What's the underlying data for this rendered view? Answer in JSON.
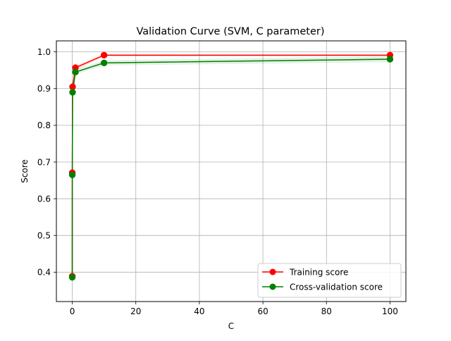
{
  "chart_data": {
    "type": "line",
    "title": "Validation Curve (SVM, C parameter)",
    "xlabel": "C",
    "ylabel": "Score",
    "xlim": [
      -5,
      105
    ],
    "ylim": [
      0.32,
      1.03
    ],
    "grid": true,
    "legend_position": "lower-right",
    "xticks": [
      0,
      20,
      40,
      60,
      80,
      100
    ],
    "xtick_labels": [
      "0",
      "20",
      "40",
      "60",
      "80",
      "100"
    ],
    "yticks": [
      0.4,
      0.5,
      0.6,
      0.7,
      0.8,
      0.9,
      1.0
    ],
    "ytick_labels": [
      "0.4",
      "0.5",
      "0.6",
      "0.7",
      "0.8",
      "0.9",
      "1.0"
    ],
    "x": [
      0.001,
      0.01,
      0.1,
      1,
      10,
      100
    ],
    "series": [
      {
        "name": "Training score",
        "color": "#ff0000",
        "marker": "circle",
        "values": [
          0.389,
          0.671,
          0.905,
          0.957,
          0.991,
          0.991
        ],
        "band_upper": [
          0.391,
          0.675,
          0.91,
          0.963,
          0.994,
          0.994
        ],
        "band_lower": [
          0.387,
          0.667,
          0.9,
          0.949,
          0.988,
          0.988
        ]
      },
      {
        "name": "Cross-validation score",
        "color": "#008000",
        "marker": "circle",
        "values": [
          0.386,
          0.665,
          0.89,
          0.945,
          0.97,
          0.98
        ],
        "band_upper": [
          0.388,
          0.67,
          0.897,
          0.952,
          0.977,
          0.988
        ],
        "band_lower": [
          0.384,
          0.66,
          0.883,
          0.938,
          0.963,
          0.972
        ]
      }
    ]
  }
}
